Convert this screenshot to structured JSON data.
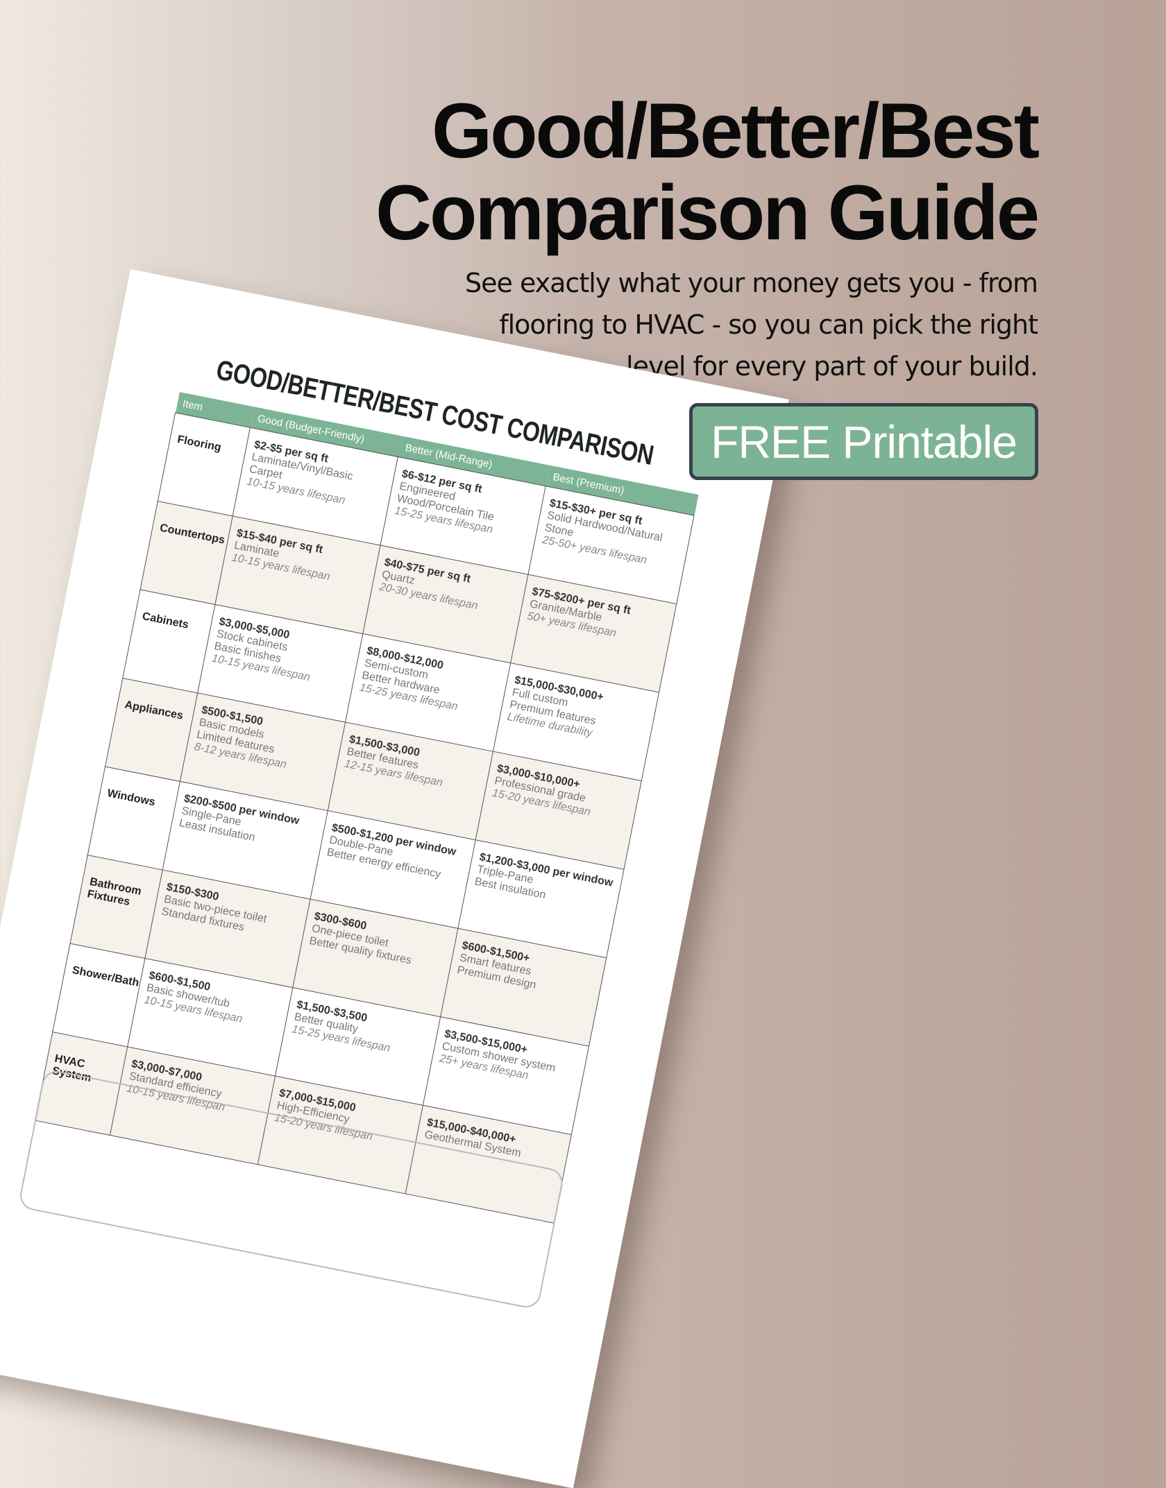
{
  "hero": {
    "title_line1": "Good/Better/Best",
    "title_line2": "Comparison Guide",
    "subtitle_lines": [
      "See exactly what your money gets you - from",
      "flooring to HVAC - so you can pick the right",
      "level for every part of your build."
    ],
    "cta_label": "FREE Printable"
  },
  "colors": {
    "accent": "#7db395",
    "cta_border": "#37424a",
    "row_alt": "#f6f1eb"
  },
  "document": {
    "title": "GOOD/BETTER/BEST COST COMPARISON",
    "headers": [
      "Item",
      "Good (Budget-Friendly)",
      "Better (Mid-Range)",
      "Best (Premium)"
    ],
    "rows": [
      {
        "item": "Flooring",
        "cells": [
          {
            "price": "$2-$5 per sq ft",
            "details": [
              "Laminate/Vinyl/Basic Carpet"
            ],
            "note": "10-15 years lifespan"
          },
          {
            "price": "$6-$12 per sq ft",
            "details": [
              "Engineered Wood/Porcelain Tile"
            ],
            "note": "15-25 years lifespan"
          },
          {
            "price": "$15-$30+ per sq ft",
            "details": [
              "Solid Hardwood/Natural Stone"
            ],
            "note": "25-50+ years lifespan"
          }
        ]
      },
      {
        "item": "Countertops",
        "cells": [
          {
            "price": "$15-$40 per sq ft",
            "details": [
              "Laminate"
            ],
            "note": "10-15 years lifespan"
          },
          {
            "price": "$40-$75 per sq ft",
            "details": [
              "Quartz"
            ],
            "note": "20-30 years lifespan"
          },
          {
            "price": "$75-$200+ per sq ft",
            "details": [
              "Granite/Marble"
            ],
            "note": "50+ years lifespan"
          }
        ]
      },
      {
        "item": "Cabinets",
        "cells": [
          {
            "price": "$3,000-$5,000",
            "details": [
              "Stock cabinets",
              "Basic finishes"
            ],
            "note": "10-15 years lifespan"
          },
          {
            "price": "$8,000-$12,000",
            "details": [
              "Semi-custom",
              "Better hardware"
            ],
            "note": "15-25 years lifespan"
          },
          {
            "price": "$15,000-$30,000+",
            "details": [
              "Full custom",
              "Premium features"
            ],
            "note": "Lifetime durability"
          }
        ]
      },
      {
        "item": "Appliances",
        "cells": [
          {
            "price": "$500-$1,500",
            "details": [
              "Basic models",
              "Limited features"
            ],
            "note": "8-12 years lifespan"
          },
          {
            "price": "$1,500-$3,000",
            "details": [
              "Better features"
            ],
            "note": "12-15 years lifespan"
          },
          {
            "price": "$3,000-$10,000+",
            "details": [
              "Professional grade"
            ],
            "note": "15-20 years lifespan"
          }
        ]
      },
      {
        "item": "Windows",
        "cells": [
          {
            "price": "$200-$500 per window",
            "details": [
              "Single-Pane",
              "Least insulation"
            ],
            "note": ""
          },
          {
            "price": "$500-$1,200 per window",
            "details": [
              "Double-Pane",
              "Better energy efficiency"
            ],
            "note": ""
          },
          {
            "price": "$1,200-$3,000 per window",
            "details": [
              "Triple-Pane",
              "Best insulation"
            ],
            "note": ""
          }
        ]
      },
      {
        "item": "Bathroom Fixtures",
        "cells": [
          {
            "price": "$150-$300",
            "details": [
              "Basic two-piece toilet",
              "Standard fixtures"
            ],
            "note": ""
          },
          {
            "price": "$300-$600",
            "details": [
              "One-piece toilet",
              "Better quality fixtures"
            ],
            "note": ""
          },
          {
            "price": "$600-$1,500+",
            "details": [
              "Smart features",
              "Premium design"
            ],
            "note": ""
          }
        ]
      },
      {
        "item": "Shower/Bath",
        "cells": [
          {
            "price": "$600-$1,500",
            "details": [
              "Basic shower/tub"
            ],
            "note": "10-15 years lifespan"
          },
          {
            "price": "$1,500-$3,500",
            "details": [
              "Better quality"
            ],
            "note": "15-25 years lifespan"
          },
          {
            "price": "$3,500-$15,000+",
            "details": [
              "Custom shower system"
            ],
            "note": "25+ years lifespan"
          }
        ]
      },
      {
        "item": "HVAC System",
        "cells": [
          {
            "price": "$3,000-$7,000",
            "details": [
              "Standard efficiency"
            ],
            "note": "10-15 years lifespan"
          },
          {
            "price": "$7,000-$15,000",
            "details": [
              "High-Efficiency"
            ],
            "note": "15-20 years lifespan"
          },
          {
            "price": "$15,000-$40,000+",
            "details": [
              "Geothermal System"
            ],
            "note": ""
          }
        ]
      }
    ]
  }
}
